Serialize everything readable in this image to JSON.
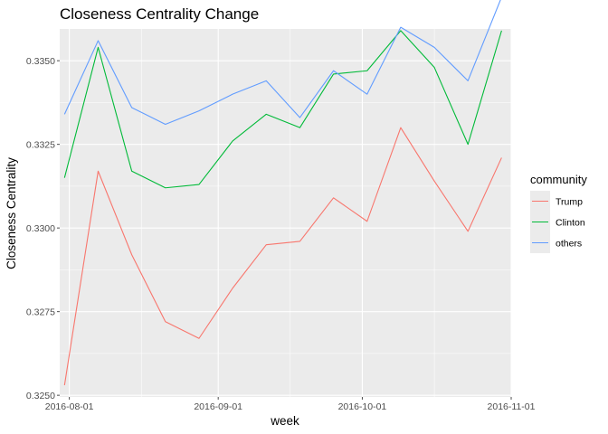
{
  "chart_data": {
    "type": "line",
    "title": "Closeness Centrality Change",
    "xlabel": "week",
    "ylabel": "Closeness Centrality",
    "legend_title": "community",
    "legend_position": "right",
    "grid": true,
    "x_dates": [
      "2016-07-31",
      "2016-08-07",
      "2016-08-14",
      "2016-08-21",
      "2016-08-28",
      "2016-09-04",
      "2016-09-11",
      "2016-09-18",
      "2016-09-25",
      "2016-10-02",
      "2016-10-09",
      "2016-10-16",
      "2016-10-23",
      "2016-10-30"
    ],
    "x_ticks": [
      "2016-08-01",
      "2016-09-01",
      "2016-10-01",
      "2016-11-01"
    ],
    "y_ticks": [
      "0.3250",
      "0.3275",
      "0.3300",
      "0.3325",
      "0.3350"
    ],
    "xlim": [
      "2016-07-30",
      "2016-11-01"
    ],
    "ylim": [
      0.32495,
      0.33595
    ],
    "colors": {
      "panel": "#EBEBEB",
      "grid": "#FFFFFF",
      "tick": "#4d4d4d"
    },
    "series": [
      {
        "name": "Trump",
        "color": "#F8766D",
        "values": [
          0.3253,
          0.3317,
          0.3292,
          0.3272,
          0.3267,
          0.3282,
          0.3295,
          0.3296,
          0.3309,
          0.3302,
          0.333,
          0.3314,
          0.3299,
          0.3321
        ]
      },
      {
        "name": "Clinton",
        "color": "#00BA38",
        "values": [
          0.3315,
          0.3354,
          0.3317,
          0.3312,
          0.3313,
          0.3326,
          0.3334,
          0.333,
          0.3346,
          0.3347,
          0.3359,
          0.3348,
          0.3325,
          0.3359
        ]
      },
      {
        "name": "others",
        "color": "#619CFF",
        "values": [
          0.3334,
          0.3356,
          0.3336,
          0.3331,
          0.3335,
          0.334,
          0.3344,
          0.3333,
          0.3347,
          0.334,
          0.336,
          0.3354,
          0.3344,
          0.3369
        ]
      }
    ]
  }
}
